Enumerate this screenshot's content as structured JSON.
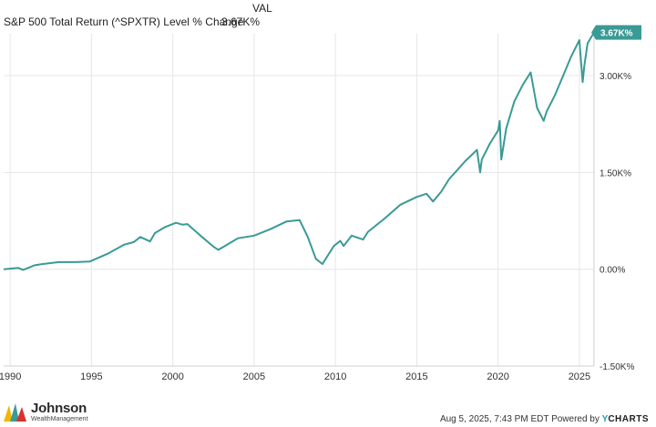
{
  "legend": {
    "column_header": "VAL",
    "series_name": "S&P 500 Total Return (^SPXTR) Level % Change",
    "series_value": "3.67K%"
  },
  "colors": {
    "series": "#3a9a95",
    "grid": "#e6e6e6",
    "axis_text": "#333333",
    "badge_text": "#ffffff"
  },
  "chart_data": {
    "type": "line",
    "title": "",
    "xlabel": "",
    "ylabel": "",
    "x_ticks": [
      "1990",
      "1995",
      "2000",
      "2005",
      "2010",
      "2015",
      "2020",
      "2025"
    ],
    "y_ticks": [
      "3.00K%",
      "1.50K%",
      "0.00%",
      "-1.50K%"
    ],
    "y_tick_values": [
      3000,
      1500,
      0,
      -1500
    ],
    "xlim": [
      1989.6,
      2025.9
    ],
    "ylim": [
      -1500,
      3650
    ],
    "grid": true,
    "end_label": "3.67K%",
    "series": [
      {
        "name": "S&P 500 Total Return (^SPXTR) Level % Change",
        "x": [
          1989.6,
          1990.5,
          1990.8,
          1991.5,
          1992,
          1993,
          1994,
          1994.9,
          1996,
          1997,
          1997.6,
          1998,
          1998.6,
          1998.9,
          1999.5,
          2000.2,
          2000.6,
          2000.9,
          2001.7,
          2002.5,
          2002.8,
          2003.2,
          2004,
          2005,
          2006,
          2007,
          2007.8,
          2008.3,
          2008.8,
          2009.2,
          2009.9,
          2010.3,
          2010.5,
          2011,
          2011.7,
          2012,
          2013,
          2014,
          2015,
          2015.6,
          2016,
          2016.5,
          2017,
          2018,
          2018.7,
          2018.9,
          2019,
          2019.5,
          2020,
          2020.1,
          2020.2,
          2020.5,
          2021,
          2021.5,
          2022,
          2022.4,
          2022.8,
          2023,
          2023.5,
          2024,
          2024.5,
          2025,
          2025.2,
          2025.3,
          2025.5,
          2025.9
        ],
        "y": [
          0,
          20,
          -10,
          60,
          80,
          110,
          110,
          120,
          240,
          380,
          420,
          500,
          430,
          560,
          650,
          720,
          690,
          700,
          520,
          350,
          300,
          360,
          480,
          520,
          620,
          740,
          760,
          500,
          160,
          80,
          360,
          440,
          360,
          520,
          460,
          580,
          780,
          1000,
          1120,
          1170,
          1050,
          1200,
          1400,
          1680,
          1850,
          1500,
          1700,
          1950,
          2150,
          2300,
          1700,
          2180,
          2600,
          2850,
          3050,
          2500,
          2300,
          2450,
          2700,
          3000,
          3300,
          3550,
          2900,
          3150,
          3500,
          3670
        ]
      }
    ]
  },
  "footer": {
    "brand_name": "Johnson",
    "brand_sub": "WealthManagement",
    "timestamp": "Aug 5, 2025, 7:43 PM EDT",
    "powered_by": "Powered by",
    "ycharts": "CHARTS",
    "ycharts_y": "Y"
  }
}
